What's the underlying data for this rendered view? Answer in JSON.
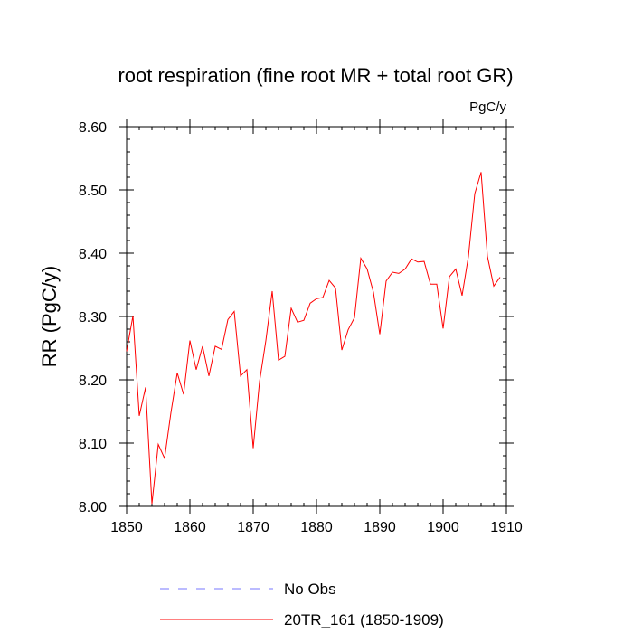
{
  "chart_data": {
    "type": "line",
    "title": "root respiration (fine root MR + total root GR)",
    "units": "PgC/y",
    "xlabel": "",
    "ylabel": "RR  (PgC/y)",
    "xlim": [
      1850,
      1910
    ],
    "ylim": [
      8.0,
      8.6
    ],
    "xticks": [
      1850,
      1860,
      1870,
      1880,
      1890,
      1900,
      1910
    ],
    "xtick_labels": [
      "1850",
      "1860",
      "1870",
      "1880",
      "1890",
      "1900",
      "1910"
    ],
    "yticks": [
      8.0,
      8.1,
      8.2,
      8.3,
      8.4,
      8.5,
      8.6
    ],
    "ytick_labels": [
      "8.00",
      "8.10",
      "8.20",
      "8.30",
      "8.40",
      "8.50",
      "8.60"
    ],
    "grid": false,
    "series": [
      {
        "name": "No Obs",
        "color": "#7777ff",
        "dash": "dashed",
        "x": [],
        "values": []
      },
      {
        "name": "20TR_161 (1850-1909)",
        "color": "#ff0000",
        "dash": "solid",
        "x": [
          1850,
          1851,
          1852,
          1853,
          1854,
          1855,
          1856,
          1857,
          1858,
          1859,
          1860,
          1861,
          1862,
          1863,
          1864,
          1865,
          1866,
          1867,
          1868,
          1869,
          1870,
          1871,
          1872,
          1873,
          1874,
          1875,
          1876,
          1877,
          1878,
          1879,
          1880,
          1881,
          1882,
          1883,
          1884,
          1885,
          1886,
          1887,
          1888,
          1889,
          1890,
          1891,
          1892,
          1893,
          1894,
          1895,
          1896,
          1897,
          1898,
          1899,
          1900,
          1901,
          1902,
          1903,
          1904,
          1905,
          1906,
          1907,
          1908,
          1909
        ],
        "values": [
          8.245,
          8.301,
          8.143,
          8.188,
          8.004,
          8.098,
          8.076,
          8.148,
          8.211,
          8.177,
          8.262,
          8.216,
          8.253,
          8.206,
          8.253,
          8.248,
          8.295,
          8.308,
          8.206,
          8.216,
          8.092,
          8.197,
          8.262,
          8.34,
          8.231,
          8.237,
          8.313,
          8.291,
          8.294,
          8.321,
          8.328,
          8.33,
          8.357,
          8.345,
          8.247,
          8.279,
          8.298,
          8.392,
          8.375,
          8.338,
          8.272,
          8.356,
          8.37,
          8.368,
          8.375,
          8.391,
          8.386,
          8.387,
          8.351,
          8.351,
          8.281,
          8.363,
          8.375,
          8.333,
          8.395,
          8.494,
          8.528,
          8.395,
          8.348,
          8.362
        ]
      }
    ],
    "legend_position": "bottom-center"
  }
}
